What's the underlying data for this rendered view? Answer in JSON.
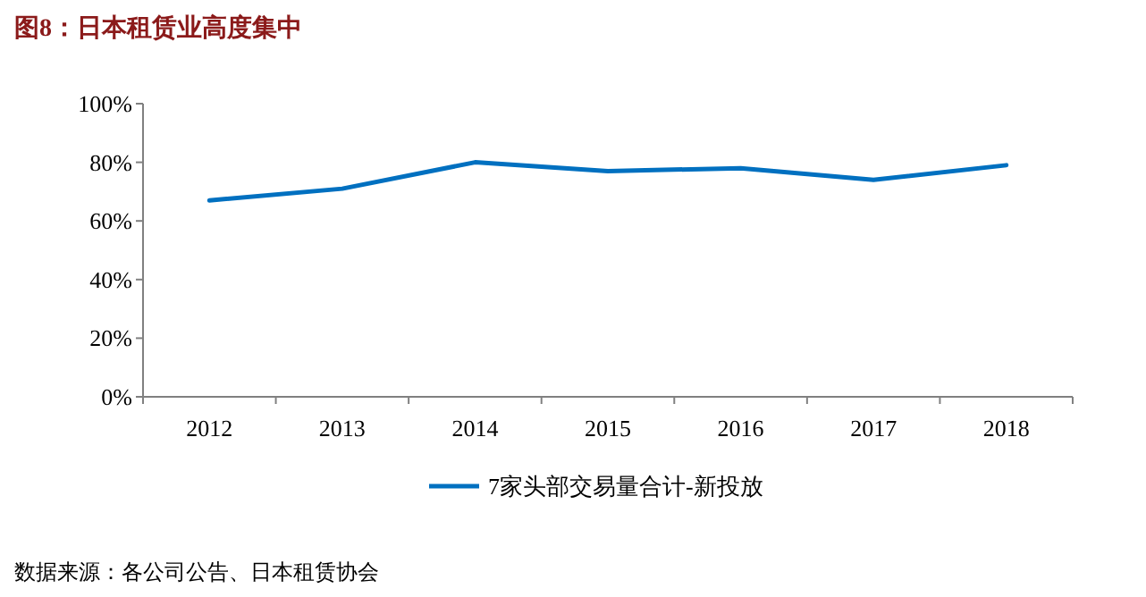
{
  "chart_data": {
    "type": "line",
    "title": "图8：日本租赁业高度集中",
    "categories": [
      "2012",
      "2013",
      "2014",
      "2015",
      "2016",
      "2017",
      "2018"
    ],
    "series": [
      {
        "name": "7家头部交易量合计-新投放",
        "color": "#0070c0",
        "values": [
          67,
          71,
          80,
          77,
          78,
          74,
          79
        ]
      }
    ],
    "ylim": [
      0,
      100
    ],
    "yticks": [
      {
        "value": 0,
        "label": "0%"
      },
      {
        "value": 20,
        "label": "20%"
      },
      {
        "value": 40,
        "label": "40%"
      },
      {
        "value": 60,
        "label": "60%"
      },
      {
        "value": 80,
        "label": "80%"
      },
      {
        "value": 100,
        "label": "100%"
      }
    ],
    "legend": "bottom",
    "marker": "none",
    "line_style": "solid",
    "annotations": [
      "数据来源：各公司公告、日本租赁协会"
    ]
  }
}
